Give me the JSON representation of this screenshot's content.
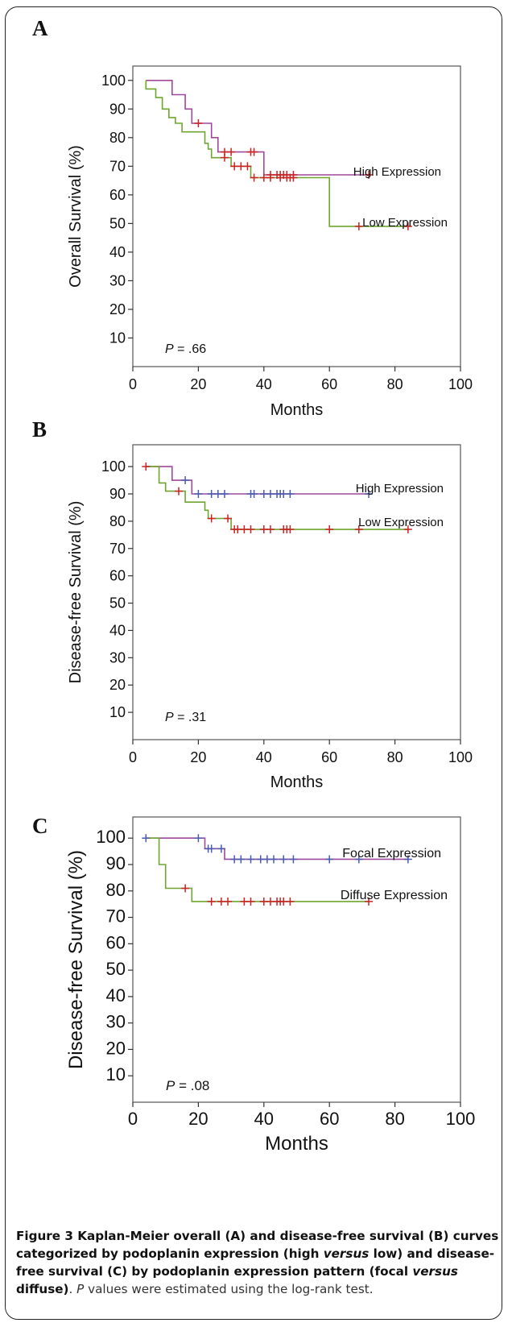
{
  "panels": [
    {
      "letter": "A"
    },
    {
      "letter": "B"
    },
    {
      "letter": "C"
    }
  ],
  "chart_data": [
    {
      "type": "line",
      "panel": "A",
      "xlabel": "Months",
      "ylabel": "Overall Survival (%)",
      "xlim": [
        0,
        100
      ],
      "ylim": [
        0,
        105
      ],
      "xticks": [
        0,
        20,
        40,
        60,
        80,
        100
      ],
      "yticks": [
        10,
        20,
        30,
        40,
        50,
        60,
        70,
        80,
        90,
        100
      ],
      "annotation": {
        "text_prefix": "P",
        "text_value": " = .66"
      },
      "series": [
        {
          "name": "High Expression",
          "color": "#a0489c",
          "steps": [
            [
              4,
              100
            ],
            [
              12,
              100
            ],
            [
              12,
              95
            ],
            [
              16,
              95
            ],
            [
              16,
              90
            ],
            [
              18,
              90
            ],
            [
              18,
              85
            ],
            [
              24,
              85
            ],
            [
              24,
              80
            ],
            [
              26,
              80
            ],
            [
              26,
              75
            ],
            [
              40,
              75
            ],
            [
              40,
              67
            ],
            [
              72,
              67
            ]
          ],
          "censored": [
            [
              20,
              85
            ],
            [
              28,
              75
            ],
            [
              30,
              75
            ],
            [
              36,
              75
            ],
            [
              37,
              75
            ],
            [
              42,
              67
            ],
            [
              44,
              67
            ],
            [
              45,
              67
            ],
            [
              46,
              67
            ],
            [
              47,
              67
            ],
            [
              49,
              67
            ],
            [
              72,
              67
            ]
          ]
        },
        {
          "name": "Low Expression",
          "color": "#6fa52e",
          "steps": [
            [
              4,
              100
            ],
            [
              4,
              97
            ],
            [
              7,
              97
            ],
            [
              7,
              94
            ],
            [
              9,
              94
            ],
            [
              9,
              90
            ],
            [
              11,
              90
            ],
            [
              11,
              87
            ],
            [
              13,
              87
            ],
            [
              13,
              85
            ],
            [
              15,
              85
            ],
            [
              15,
              82
            ],
            [
              22,
              82
            ],
            [
              22,
              78
            ],
            [
              23,
              78
            ],
            [
              23,
              76
            ],
            [
              24,
              76
            ],
            [
              24,
              73
            ],
            [
              30,
              73
            ],
            [
              30,
              70
            ],
            [
              36,
              70
            ],
            [
              36,
              66
            ],
            [
              60,
              66
            ],
            [
              60,
              49
            ],
            [
              84,
              49
            ]
          ],
          "censored": [
            [
              28,
              73
            ],
            [
              31,
              70
            ],
            [
              33,
              70
            ],
            [
              35,
              70
            ],
            [
              37,
              66
            ],
            [
              40,
              66
            ],
            [
              42,
              66
            ],
            [
              45,
              66
            ],
            [
              47,
              66
            ],
            [
              48,
              66
            ],
            [
              49,
              66
            ],
            [
              69,
              49
            ],
            [
              84,
              49
            ]
          ]
        }
      ],
      "censor_color": "#cc2222"
    },
    {
      "type": "line",
      "panel": "B",
      "xlabel": "Months",
      "ylabel": "Disease-free Survival (%)",
      "xlim": [
        0,
        100
      ],
      "ylim": [
        0,
        108
      ],
      "xticks": [
        0,
        20,
        40,
        60,
        80,
        100
      ],
      "yticks": [
        10,
        20,
        30,
        40,
        50,
        60,
        70,
        80,
        90,
        100
      ],
      "annotation": {
        "text_prefix": "P",
        "text_value": " = .31"
      },
      "series": [
        {
          "name": "High Expression",
          "color": "#a0489c",
          "steps": [
            [
              4,
              100
            ],
            [
              12,
              100
            ],
            [
              12,
              95
            ],
            [
              18,
              95
            ],
            [
              18,
              90
            ],
            [
              72,
              90
            ]
          ],
          "censor_color": "#4a5bb0",
          "censored": [
            [
              16,
              95
            ],
            [
              20,
              90
            ],
            [
              24,
              90
            ],
            [
              26,
              90
            ],
            [
              28,
              90
            ],
            [
              36,
              90
            ],
            [
              37,
              90
            ],
            [
              40,
              90
            ],
            [
              42,
              90
            ],
            [
              44,
              90
            ],
            [
              45,
              90
            ],
            [
              46,
              90
            ],
            [
              48,
              90
            ],
            [
              72,
              90
            ]
          ]
        },
        {
          "name": "Low Expression",
          "color": "#6fa52e",
          "steps": [
            [
              4,
              100
            ],
            [
              8,
              100
            ],
            [
              8,
              94
            ],
            [
              10,
              94
            ],
            [
              10,
              91
            ],
            [
              16,
              91
            ],
            [
              16,
              87
            ],
            [
              22,
              87
            ],
            [
              22,
              84
            ],
            [
              23,
              84
            ],
            [
              23,
              81
            ],
            [
              30,
              81
            ],
            [
              30,
              77
            ],
            [
              84,
              77
            ]
          ],
          "censor_color": "#cc2222",
          "censored": [
            [
              4,
              100
            ],
            [
              14,
              91
            ],
            [
              24,
              81
            ],
            [
              29,
              81
            ],
            [
              31,
              77
            ],
            [
              32,
              77
            ],
            [
              34,
              77
            ],
            [
              36,
              77
            ],
            [
              40,
              77
            ],
            [
              42,
              77
            ],
            [
              46,
              77
            ],
            [
              47,
              77
            ],
            [
              48,
              77
            ],
            [
              60,
              77
            ],
            [
              69,
              77
            ],
            [
              84,
              77
            ]
          ]
        }
      ]
    },
    {
      "type": "line",
      "panel": "C",
      "xlabel": "Months",
      "ylabel": "Disease-free Survival (%)",
      "xlim": [
        0,
        100
      ],
      "ylim": [
        0,
        108
      ],
      "xticks": [
        0,
        20,
        40,
        60,
        80,
        100
      ],
      "yticks": [
        10,
        20,
        30,
        40,
        50,
        60,
        70,
        80,
        90,
        100
      ],
      "annotation": {
        "text_prefix": "P",
        "text_value": " = .08"
      },
      "series": [
        {
          "name": "Focal Expression",
          "color": "#a0489c",
          "steps": [
            [
              4,
              100
            ],
            [
              22,
              100
            ],
            [
              22,
              96
            ],
            [
              28,
              96
            ],
            [
              28,
              92
            ],
            [
              84,
              92
            ]
          ],
          "censor_color": "#4a5bb0",
          "censored": [
            [
              4,
              100
            ],
            [
              20,
              100
            ],
            [
              23,
              96
            ],
            [
              24,
              96
            ],
            [
              27,
              96
            ],
            [
              31,
              92
            ],
            [
              33,
              92
            ],
            [
              36,
              92
            ],
            [
              39,
              92
            ],
            [
              41,
              92
            ],
            [
              43,
              92
            ],
            [
              46,
              92
            ],
            [
              49,
              92
            ],
            [
              60,
              92
            ],
            [
              69,
              92
            ],
            [
              84,
              92
            ]
          ]
        },
        {
          "name": "Diffuse Expression",
          "color": "#6fa52e",
          "steps": [
            [
              4,
              100
            ],
            [
              8,
              100
            ],
            [
              8,
              90
            ],
            [
              10,
              90
            ],
            [
              10,
              81
            ],
            [
              18,
              81
            ],
            [
              18,
              76
            ],
            [
              72,
              76
            ]
          ],
          "censor_color": "#cc2222",
          "censored": [
            [
              16,
              81
            ],
            [
              24,
              76
            ],
            [
              27,
              76
            ],
            [
              29,
              76
            ],
            [
              34,
              76
            ],
            [
              36,
              76
            ],
            [
              40,
              76
            ],
            [
              42,
              76
            ],
            [
              44,
              76
            ],
            [
              45,
              76
            ],
            [
              46,
              76
            ],
            [
              48,
              76
            ],
            [
              72,
              76
            ]
          ]
        }
      ]
    }
  ],
  "caption": {
    "label": "Figure 3",
    "part1": " Kaplan-Meier overall (A) and disease-free survival (B) curves categorized by podoplanin expression (high ",
    "versus1": "versus",
    "part2": " low) and disease-free survival (C) by podoplanin expression pattern (focal ",
    "versus2": "versus",
    "part3": " diffuse)",
    "p_letter": "P",
    "rest": " values were estimated using the log-rank test."
  }
}
